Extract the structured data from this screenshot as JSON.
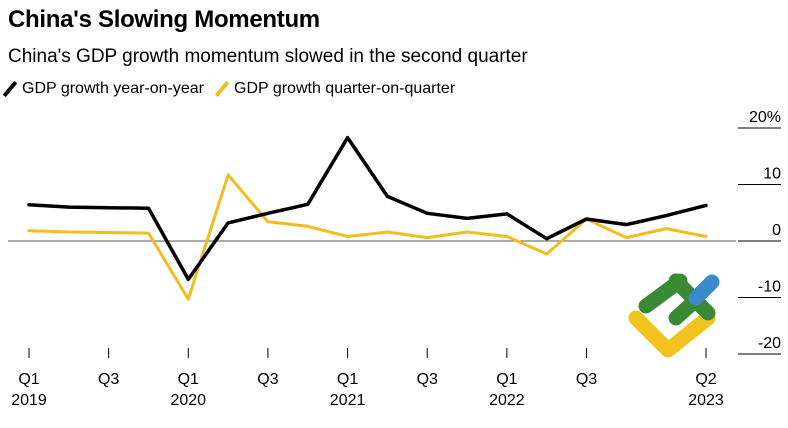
{
  "colors": {
    "series_yoy": "#000000",
    "series_qoq": "#f2bd1f",
    "zero_line": "#555555",
    "ytick_line": "#000000",
    "watermark_green": "#3a8a35",
    "watermark_blue": "#3a89c9",
    "watermark_yellow": "#f2c31f"
  },
  "chart_data": {
    "type": "line",
    "title": "China's Slowing Momentum",
    "subtitle": "China's GDP growth momentum slowed in the second quarter",
    "x": [
      "2019Q1",
      "2019Q2",
      "2019Q3",
      "2019Q4",
      "2020Q1",
      "2020Q2",
      "2020Q3",
      "2020Q4",
      "2021Q1",
      "2021Q2",
      "2021Q3",
      "2021Q4",
      "2022Q1",
      "2022Q2",
      "2022Q3",
      "2022Q4",
      "2023Q1",
      "2023Q2"
    ],
    "series": [
      {
        "name": "GDP growth year-on-year",
        "color_key": "series_yoy",
        "values": [
          6.4,
          6.0,
          5.9,
          5.8,
          -6.8,
          3.2,
          4.9,
          6.5,
          18.3,
          7.9,
          4.9,
          4.0,
          4.8,
          0.4,
          3.9,
          2.9,
          4.5,
          6.3
        ]
      },
      {
        "name": "GDP growth quarter-on-quarter",
        "color_key": "series_qoq",
        "values": [
          1.8,
          1.6,
          1.5,
          1.4,
          -10.3,
          11.7,
          3.4,
          2.6,
          0.8,
          1.6,
          0.6,
          1.6,
          0.8,
          -2.3,
          3.9,
          0.6,
          2.2,
          0.8
        ]
      }
    ],
    "ylim": [
      -21,
      21
    ],
    "yticks": [
      {
        "value": 20,
        "label": "20%"
      },
      {
        "value": 10,
        "label": "10"
      },
      {
        "value": 0,
        "label": "0"
      },
      {
        "value": -10,
        "label": "-10"
      },
      {
        "value": -20,
        "label": "-20"
      }
    ],
    "xticks": [
      {
        "index": 0,
        "label": "Q1",
        "year": "2019"
      },
      {
        "index": 2,
        "label": "Q3",
        "year": ""
      },
      {
        "index": 4,
        "label": "Q1",
        "year": "2020"
      },
      {
        "index": 6,
        "label": "Q3",
        "year": ""
      },
      {
        "index": 8,
        "label": "Q1",
        "year": "2021"
      },
      {
        "index": 10,
        "label": "Q3",
        "year": ""
      },
      {
        "index": 12,
        "label": "Q1",
        "year": "2022"
      },
      {
        "index": 14,
        "label": "Q3",
        "year": ""
      },
      {
        "index": 17,
        "label": "Q2",
        "year": "2023"
      }
    ],
    "grid": false,
    "legend_position": "top-left"
  }
}
